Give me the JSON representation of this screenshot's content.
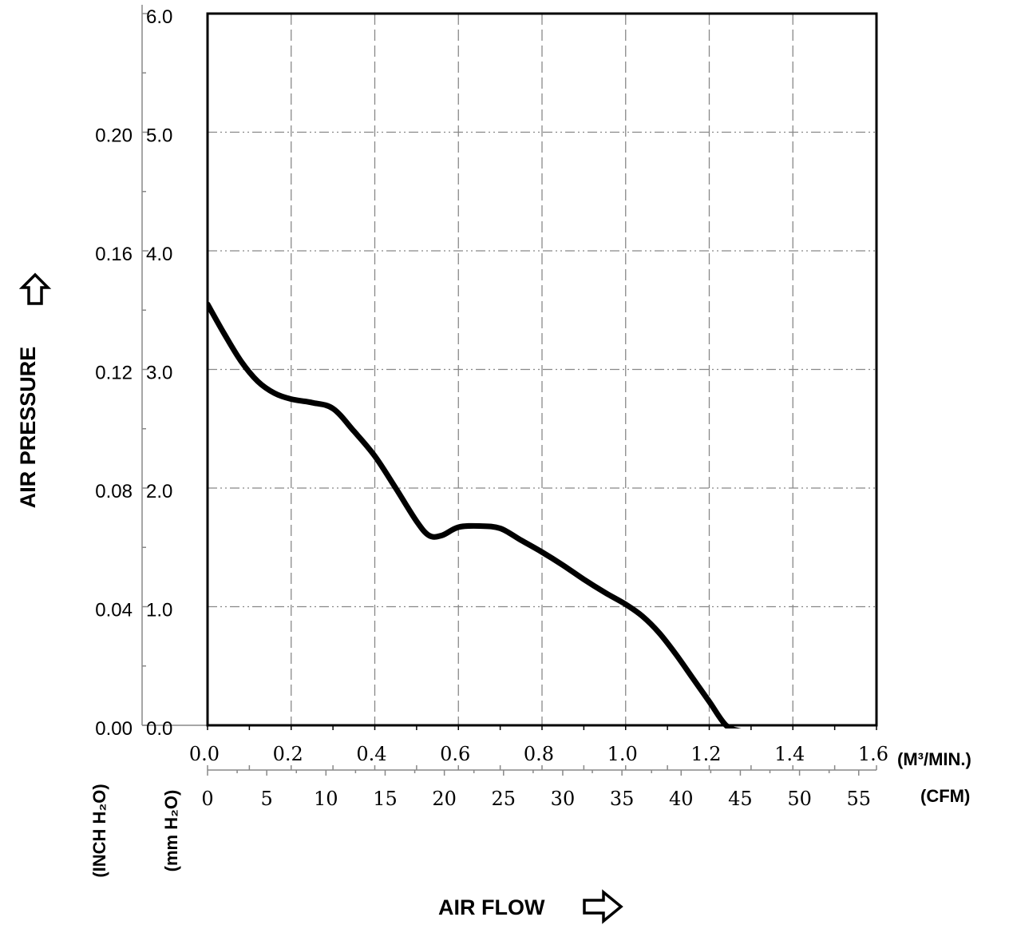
{
  "chart_data": {
    "type": "line",
    "xlabel": "AIR FLOW",
    "ylabel": "AIR PRESSURE",
    "x_units_primary": "(M³/MIN.)",
    "x_units_secondary": "(CFM)",
    "y_units_mm": "(mm H₂O)",
    "y_units_inch": "(INCH H₂O)",
    "xlim": [
      0,
      1.6
    ],
    "ylim": [
      0,
      6.0
    ],
    "grid": true,
    "x_ticks": [
      "0.0",
      "0.2",
      "0.4",
      "0.6",
      "0.8",
      "1.0",
      "1.2",
      "1.4",
      "1.6"
    ],
    "cfm_ticks": [
      "0",
      "5",
      "10",
      "15",
      "20",
      "25",
      "30",
      "35",
      "40",
      "45",
      "50",
      "55"
    ],
    "y_ticks_mm": [
      "0.0",
      "1.0",
      "2.0",
      "3.0",
      "4.0",
      "5.0",
      "6.0"
    ],
    "y_ticks_inch": [
      "0.00",
      "0.04",
      "0.08",
      "0.12",
      "0.16",
      "0.20"
    ],
    "series": [
      {
        "x": [
          0.0,
          0.04,
          0.08,
          0.12,
          0.16,
          0.2,
          0.25,
          0.3,
          0.35,
          0.4,
          0.45,
          0.5,
          0.53,
          0.56,
          0.6,
          0.65,
          0.7,
          0.75,
          0.8,
          0.85,
          0.9,
          0.95,
          1.0,
          1.04,
          1.08,
          1.12,
          1.16,
          1.2,
          1.24,
          1.275
        ],
        "y": [
          3.55,
          3.3,
          3.07,
          2.9,
          2.8,
          2.75,
          2.72,
          2.67,
          2.48,
          2.27,
          2.0,
          1.72,
          1.6,
          1.6,
          1.67,
          1.68,
          1.66,
          1.56,
          1.46,
          1.35,
          1.23,
          1.12,
          1.02,
          0.92,
          0.78,
          0.6,
          0.4,
          0.2,
          0.0,
          -0.05
        ]
      }
    ]
  }
}
